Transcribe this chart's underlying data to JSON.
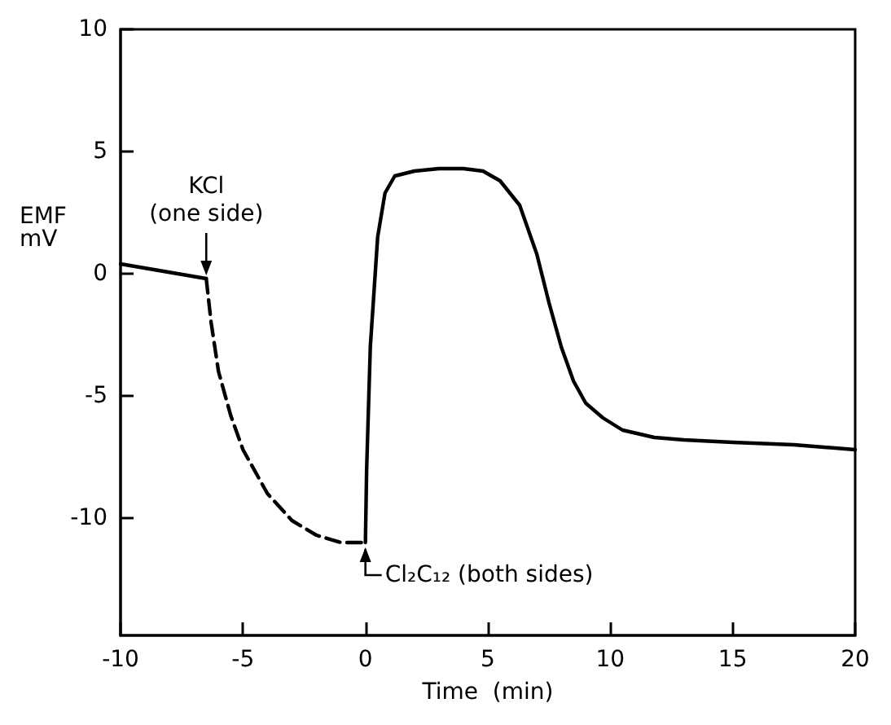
{
  "chart_data": {
    "type": "line",
    "xlabel": "Time  (min)",
    "ylabel": "EMF\nmV",
    "xlim": [
      -10,
      20
    ],
    "ylim": [
      -14.8,
      10
    ],
    "xticks": [
      -10,
      -5,
      0,
      5,
      10,
      15,
      20
    ],
    "yticks": [
      -10,
      -5,
      0,
      5,
      10
    ],
    "marker": "none",
    "series": [
      {
        "color": "#000000",
        "line_style": "solid",
        "x": [
          -10,
          -6.5
        ],
        "values": [
          0.4,
          -0.2
        ]
      },
      {
        "color": "#000000",
        "line_style": "dashed",
        "x": [
          -6.5,
          -6.3,
          -6,
          -5.5,
          -5,
          -4,
          -3,
          -2,
          -1,
          -0.2,
          0
        ],
        "values": [
          -0.2,
          -2,
          -4,
          -5.8,
          -7.2,
          -9,
          -10.1,
          -10.7,
          -11,
          -11,
          -11
        ]
      },
      {
        "color": "#000000",
        "line_style": "solid",
        "x": [
          0,
          0.05,
          0.2,
          0.5,
          0.8,
          1.2,
          2,
          3,
          4,
          4.8,
          5.5,
          6.3,
          7,
          7.5,
          8,
          8.5,
          9,
          9.7,
          10.5,
          11.8,
          13,
          15,
          17.5,
          20
        ],
        "values": [
          -11,
          -8,
          -3,
          1.5,
          3.3,
          4.0,
          4.2,
          4.3,
          4.3,
          4.2,
          3.8,
          2.8,
          0.8,
          -1.2,
          -3.0,
          -4.4,
          -5.3,
          -5.9,
          -6.4,
          -6.7,
          -6.8,
          -6.9,
          -7.0,
          -7.2
        ]
      }
    ],
    "annotations": [
      {
        "text": "KCl\n(one side)",
        "x": -6.5,
        "y": -0.2
      },
      {
        "text": "Cl₂C₁₂ (both sides)",
        "x": 0,
        "y": -11
      }
    ]
  }
}
